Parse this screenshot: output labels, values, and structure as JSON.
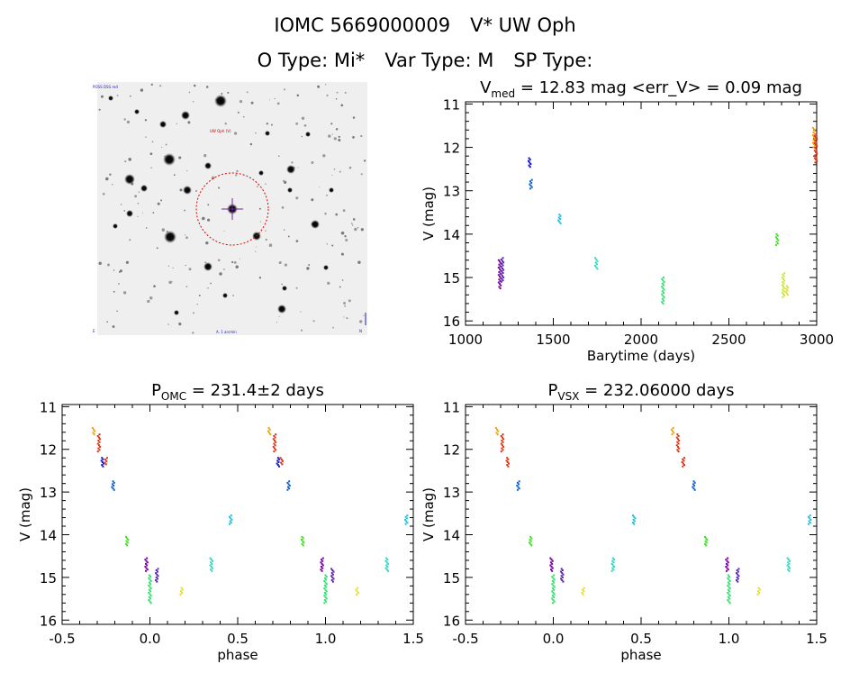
{
  "header": {
    "object_id": "IOMC 5669000009",
    "star_name": "V* UW Oph",
    "o_type": "O Type: Mi*",
    "var_type": "Var Type: M",
    "sp_type": "SP Type:"
  },
  "image_panel": {
    "caption_top_left": "POSS DSS red",
    "caption_top_center": "UW Oph (V)",
    "caption_bottom_center": "A. 1 arcmin",
    "caption_bottom_left": "E",
    "caption_bottom_right": "N"
  },
  "chart_data": [
    {
      "type": "scatter",
      "title": "V_med = 12.83 mag <err_V> = 0.09 mag",
      "title_parts": {
        "v": "V",
        "sub": "med",
        "rest": " = 12.83 mag <err_V> = 0.09 mag"
      },
      "xlabel": "Barytime (days)",
      "ylabel": "V (mag)",
      "xlim": [
        1000,
        3000
      ],
      "ylim": [
        16.1,
        10.95
      ],
      "xticks": [
        1000,
        1500,
        2000,
        2500,
        3000
      ],
      "yticks": [
        11,
        12,
        13,
        14,
        15,
        16
      ],
      "groups": [
        {
          "x": 1195,
          "y": [
            14.6,
            15.25
          ],
          "color": "#7a00a0"
        },
        {
          "x": 1210,
          "y": [
            14.55,
            15.1
          ],
          "color": "#5a1fb0"
        },
        {
          "x": 1365,
          "y": [
            12.25,
            12.45
          ],
          "color": "#1010c8"
        },
        {
          "x": 1372,
          "y": [
            12.75,
            12.95
          ],
          "color": "#1060d0"
        },
        {
          "x": 1535,
          "y": [
            13.55,
            13.75
          ],
          "color": "#20c0e0"
        },
        {
          "x": 1745,
          "y": [
            14.55,
            14.8
          ],
          "color": "#30d8c0"
        },
        {
          "x": 2125,
          "y": [
            15.0,
            15.6
          ],
          "color": "#30e070"
        },
        {
          "x": 2775,
          "y": [
            14.0,
            14.25
          ],
          "color": "#40e020"
        },
        {
          "x": 2810,
          "y": [
            14.9,
            15.45
          ],
          "color": "#c8e830"
        },
        {
          "x": 2830,
          "y": [
            15.2,
            15.4
          ],
          "color": "#e0e020"
        },
        {
          "x": 2985,
          "y": [
            11.55,
            12.0
          ],
          "color": "#f0a010"
        },
        {
          "x": 2995,
          "y": [
            11.7,
            12.35
          ],
          "color": "#e03010"
        }
      ]
    },
    {
      "type": "scatter",
      "title": "P_OMC = 231.4±2 days",
      "title_parts": {
        "v": "P",
        "sub": "OMC",
        "rest": " = 231.4±2 days"
      },
      "xlabel": "phase",
      "ylabel": "V (mag)",
      "xlim": [
        -0.5,
        1.5
      ],
      "ylim": [
        16.1,
        10.95
      ],
      "xticks": [
        -0.5,
        0.0,
        0.5,
        1.0,
        1.5
      ],
      "ytickss": null,
      "yticks": [
        11,
        12,
        13,
        14,
        15,
        16
      ],
      "groups": [
        {
          "x": -0.32,
          "y": [
            11.5,
            11.65
          ],
          "color": "#f0a010"
        },
        {
          "x": -0.29,
          "y": [
            11.65,
            12.05
          ],
          "color": "#e03010"
        },
        {
          "x": -0.27,
          "y": [
            12.2,
            12.4
          ],
          "color": "#1010c8"
        },
        {
          "x": -0.25,
          "y": [
            12.2,
            12.35
          ],
          "color": "#e03010"
        },
        {
          "x": -0.21,
          "y": [
            12.75,
            12.95
          ],
          "color": "#1060d0"
        },
        {
          "x": -0.13,
          "y": [
            14.05,
            14.25
          ],
          "color": "#40e020"
        },
        {
          "x": -0.02,
          "y": [
            14.55,
            14.85
          ],
          "color": "#7a00a0"
        },
        {
          "x": 0.0,
          "y": [
            14.95,
            15.6
          ],
          "color": "#30e070"
        },
        {
          "x": 0.04,
          "y": [
            14.8,
            15.1
          ],
          "color": "#5a1fb0"
        },
        {
          "x": 0.18,
          "y": [
            15.25,
            15.4
          ],
          "color": "#e0e020"
        },
        {
          "x": 0.35,
          "y": [
            14.55,
            14.85
          ],
          "color": "#30d8c0"
        },
        {
          "x": 0.46,
          "y": [
            13.55,
            13.75
          ],
          "color": "#20c0e0"
        },
        {
          "x": 0.68,
          "y": [
            11.5,
            11.65
          ],
          "color": "#f0a010"
        },
        {
          "x": 0.71,
          "y": [
            11.65,
            12.05
          ],
          "color": "#e03010"
        },
        {
          "x": 0.73,
          "y": [
            12.2,
            12.4
          ],
          "color": "#1010c8"
        },
        {
          "x": 0.75,
          "y": [
            12.2,
            12.35
          ],
          "color": "#e03010"
        },
        {
          "x": 0.79,
          "y": [
            12.75,
            12.95
          ],
          "color": "#1060d0"
        },
        {
          "x": 0.87,
          "y": [
            14.05,
            14.25
          ],
          "color": "#40e020"
        },
        {
          "x": 0.98,
          "y": [
            14.55,
            14.85
          ],
          "color": "#7a00a0"
        },
        {
          "x": 1.0,
          "y": [
            14.95,
            15.6
          ],
          "color": "#30e070"
        },
        {
          "x": 1.04,
          "y": [
            14.8,
            15.1
          ],
          "color": "#5a1fb0"
        },
        {
          "x": 1.18,
          "y": [
            15.25,
            15.4
          ],
          "color": "#e0e020"
        },
        {
          "x": 1.35,
          "y": [
            14.55,
            14.85
          ],
          "color": "#30d8c0"
        },
        {
          "x": 1.46,
          "y": [
            13.55,
            13.75
          ],
          "color": "#20c0e0"
        }
      ]
    },
    {
      "type": "scatter",
      "title": "P_VSX = 232.06000 days",
      "title_parts": {
        "v": "P",
        "sub": "VSX",
        "rest": " = 232.06000 days"
      },
      "xlabel": "phase",
      "ylabel": "V (mag)",
      "xlim": [
        -0.5,
        1.5
      ],
      "ylim": [
        16.1,
        10.95
      ],
      "xticks": [
        -0.5,
        0.0,
        0.5,
        1.0,
        1.5
      ],
      "yticks": [
        11,
        12,
        13,
        14,
        15,
        16
      ],
      "groups": [
        {
          "x": -0.32,
          "y": [
            11.5,
            11.65
          ],
          "color": "#f0a010"
        },
        {
          "x": -0.29,
          "y": [
            11.65,
            12.05
          ],
          "color": "#e03010"
        },
        {
          "x": -0.26,
          "y": [
            12.2,
            12.4
          ],
          "color": "#e03010"
        },
        {
          "x": -0.2,
          "y": [
            12.75,
            12.95
          ],
          "color": "#1060d0"
        },
        {
          "x": -0.13,
          "y": [
            14.05,
            14.25
          ],
          "color": "#40e020"
        },
        {
          "x": -0.01,
          "y": [
            14.55,
            14.85
          ],
          "color": "#7a00a0"
        },
        {
          "x": 0.0,
          "y": [
            14.95,
            15.6
          ],
          "color": "#30e070"
        },
        {
          "x": 0.05,
          "y": [
            14.8,
            15.1
          ],
          "color": "#5a1fb0"
        },
        {
          "x": 0.17,
          "y": [
            15.25,
            15.4
          ],
          "color": "#e0e020"
        },
        {
          "x": 0.34,
          "y": [
            14.55,
            14.85
          ],
          "color": "#30d8c0"
        },
        {
          "x": 0.46,
          "y": [
            13.55,
            13.75
          ],
          "color": "#20c0e0"
        },
        {
          "x": 0.68,
          "y": [
            11.5,
            11.65
          ],
          "color": "#f0a010"
        },
        {
          "x": 0.71,
          "y": [
            11.65,
            12.05
          ],
          "color": "#e03010"
        },
        {
          "x": 0.74,
          "y": [
            12.2,
            12.4
          ],
          "color": "#e03010"
        },
        {
          "x": 0.8,
          "y": [
            12.75,
            12.95
          ],
          "color": "#1060d0"
        },
        {
          "x": 0.87,
          "y": [
            14.05,
            14.25
          ],
          "color": "#40e020"
        },
        {
          "x": 0.99,
          "y": [
            14.55,
            14.85
          ],
          "color": "#7a00a0"
        },
        {
          "x": 1.0,
          "y": [
            14.95,
            15.6
          ],
          "color": "#30e070"
        },
        {
          "x": 1.05,
          "y": [
            14.8,
            15.1
          ],
          "color": "#5a1fb0"
        },
        {
          "x": 1.17,
          "y": [
            15.25,
            15.4
          ],
          "color": "#e0e020"
        },
        {
          "x": 1.34,
          "y": [
            14.55,
            14.85
          ],
          "color": "#30d8c0"
        },
        {
          "x": 1.46,
          "y": [
            13.55,
            13.75
          ],
          "color": "#20c0e0"
        }
      ]
    }
  ]
}
